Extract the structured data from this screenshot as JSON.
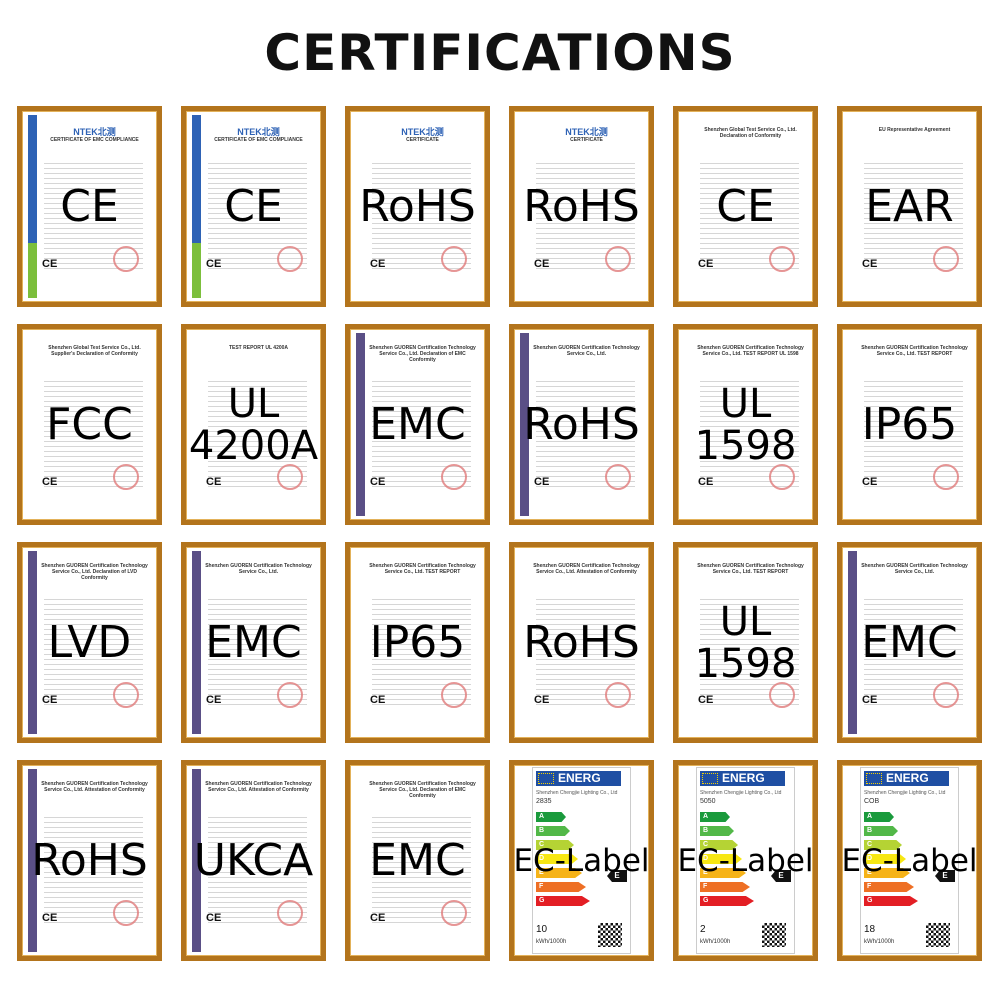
{
  "title": "CERTIFICATIONS",
  "colors": {
    "frame": "#b3741c",
    "ntek_blue": "#2e62b5",
    "guoren_purple": "#5a4f86"
  },
  "certificates": [
    {
      "label": "CE",
      "style": "ntek",
      "header": "CERTIFICATE OF EMC COMPLIANCE",
      "logo": "NTEK北测"
    },
    {
      "label": "CE",
      "style": "ntek",
      "header": "CERTIFICATE OF EMC COMPLIANCE",
      "logo": "NTEK北测"
    },
    {
      "label": "RoHS",
      "style": "plain",
      "header": "CERTIFICATE",
      "logo": "NTEK北测"
    },
    {
      "label": "RoHS",
      "style": "plain",
      "header": "CERTIFICATE",
      "logo": "NTEK北测"
    },
    {
      "label": "CE",
      "style": "plain",
      "header": "Shenzhen Global Test Service Co., Ltd. Declaration of Conformity"
    },
    {
      "label": "EAR",
      "style": "plain",
      "header": "EU Representative Agreement"
    },
    {
      "label": "FCC",
      "style": "plain",
      "header": "Shenzhen Global Test Service Co., Ltd. Supplier's Declaration of Conformity"
    },
    {
      "label": "UL\n4200A",
      "style": "plain",
      "header": "TEST REPORT UL 4200A"
    },
    {
      "label": "EMC",
      "style": "guoren",
      "header": "Shenzhen GUOREN Certification Technology Service Co., Ltd. Declaration of EMC Conformity"
    },
    {
      "label": "RoHS",
      "style": "guoren",
      "header": "Shenzhen GUOREN Certification Technology Service Co., Ltd."
    },
    {
      "label": "UL\n1598",
      "style": "plain",
      "header": "Shenzhen GUOREN Certification Technology Service Co., Ltd. TEST REPORT UL 1598"
    },
    {
      "label": "IP65",
      "style": "plain",
      "header": "Shenzhen GUOREN Certification Technology Service Co., Ltd. TEST REPORT"
    },
    {
      "label": "LVD",
      "style": "guoren",
      "header": "Shenzhen GUOREN Certification Technology Service Co., Ltd. Declaration of LVD Conformity"
    },
    {
      "label": "EMC",
      "style": "guoren",
      "header": "Shenzhen GUOREN Certification Technology Service Co., Ltd."
    },
    {
      "label": "IP65",
      "style": "plain",
      "header": "Shenzhen GUOREN Certification Technology Service Co., Ltd. TEST REPORT"
    },
    {
      "label": "RoHS",
      "style": "plain",
      "header": "Shenzhen GUOREN Certification Technology Service Co., Ltd. Attestation of Conformity"
    },
    {
      "label": "UL\n1598",
      "style": "plain",
      "header": "Shenzhen GUOREN Certification Technology Service Co., Ltd. TEST REPORT"
    },
    {
      "label": "EMC",
      "style": "guoren",
      "header": "Shenzhen GUOREN Certification Technology Service Co., Ltd."
    },
    {
      "label": "RoHS",
      "style": "guoren",
      "header": "Shenzhen GUOREN Certification Technology Service Co., Ltd. Attestation of Conformity"
    },
    {
      "label": "UKCA",
      "style": "guoren",
      "header": "Shenzhen GUOREN Certification Technology Service Co., Ltd. Attestation of Conformity"
    },
    {
      "label": "EMC",
      "style": "plain",
      "header": "Shenzhen GUOREN Certification Technology Service Co., Ltd. Declaration of EMC Conformity"
    },
    {
      "label": "EC-Label",
      "style": "energy",
      "brand": "ENERG",
      "company": "Shenzhen Chengjie Lighting Co., Ltd",
      "model": "2835",
      "classes": [
        "A",
        "B",
        "C",
        "D",
        "E",
        "F",
        "G"
      ],
      "rating": "E",
      "value": "10",
      "unit": "kWh/1000h"
    },
    {
      "label": "EC-Label",
      "style": "energy",
      "brand": "ENERG",
      "company": "Shenzhen Chengjie Lighting Co., Ltd",
      "model": "5050",
      "classes": [
        "A",
        "B",
        "C",
        "D",
        "E",
        "F",
        "G"
      ],
      "rating": "E",
      "value": "2",
      "unit": "kWh/1000h"
    },
    {
      "label": "EC-Label",
      "style": "energy",
      "brand": "ENERG",
      "company": "Shenzhen Chengjie Lighting Co., Ltd",
      "model": "COB",
      "classes": [
        "A",
        "B",
        "C",
        "D",
        "E",
        "F",
        "G"
      ],
      "rating": "E",
      "value": "18",
      "unit": "kWh/1000h"
    }
  ]
}
